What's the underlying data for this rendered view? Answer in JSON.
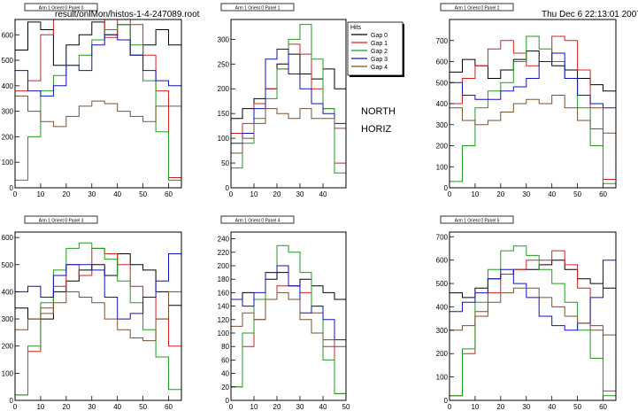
{
  "header": {
    "file_name": "result/onlMon/histos-1-4-247089.root",
    "timestamp": "Thu Dec  6 22:13:01 2007"
  },
  "side_labels": [
    "NORTH",
    "HORIZ"
  ],
  "legend": {
    "title": "Hits",
    "entries": [
      {
        "name": "Gap 0",
        "color": "#000000"
      },
      {
        "name": "Gap 1",
        "color": "#d42020"
      },
      {
        "name": "Gap 2",
        "color": "#1f9d1f"
      },
      {
        "name": "Gap 3",
        "color": "#1010c0"
      },
      {
        "name": "Gap 4",
        "color": "#7a5230"
      }
    ]
  },
  "chart_data": [
    {
      "type": "line",
      "title": "Arm 1 Orient 0 Panel 0",
      "xlim": [
        0,
        65
      ],
      "ylim": [
        0,
        660
      ],
      "xticks": [
        0,
        10,
        20,
        30,
        40,
        50,
        60
      ],
      "yticks": [
        0,
        100,
        200,
        300,
        400,
        500,
        600
      ],
      "series": [
        {
          "color": "#000000",
          "x": [
            0,
            5,
            10,
            15,
            20,
            25,
            30,
            35,
            40,
            45,
            50,
            55,
            60
          ],
          "y": [
            540,
            650,
            620,
            480,
            560,
            600,
            650,
            600,
            640,
            520,
            560,
            620,
            560
          ]
        },
        {
          "color": "#d42020",
          "x": [
            0,
            5,
            10,
            15,
            20,
            25,
            30,
            35,
            40,
            45,
            50,
            55,
            60
          ],
          "y": [
            380,
            420,
            600,
            690,
            720,
            680,
            720,
            590,
            720,
            640,
            520,
            380,
            40
          ]
        },
        {
          "color": "#1f9d1f",
          "x": [
            0,
            5,
            10,
            15,
            20,
            25,
            30,
            35,
            40,
            45,
            50,
            55,
            60
          ],
          "y": [
            30,
            200,
            380,
            440,
            480,
            520,
            580,
            620,
            640,
            560,
            420,
            220,
            30
          ]
        },
        {
          "color": "#1010c0",
          "x": [
            0,
            5,
            10,
            15,
            20,
            25,
            30,
            35,
            40,
            45,
            50,
            55,
            60
          ],
          "y": [
            460,
            380,
            360,
            400,
            480,
            460,
            560,
            600,
            580,
            520,
            460,
            420,
            400
          ]
        },
        {
          "color": "#7a5230",
          "x": [
            0,
            5,
            10,
            15,
            20,
            25,
            30,
            35,
            40,
            45,
            50,
            55,
            60
          ],
          "y": [
            360,
            300,
            260,
            240,
            280,
            320,
            340,
            330,
            300,
            280,
            260,
            320,
            320
          ]
        }
      ]
    },
    {
      "type": "line",
      "title": "Arm 1 Orient 0 Panel 1",
      "xlim": [
        0,
        50
      ],
      "ylim": [
        0,
        340
      ],
      "xticks": [
        0,
        10,
        20,
        30,
        40
      ],
      "yticks": [
        0,
        50,
        100,
        150,
        200,
        250,
        300
      ],
      "series": [
        {
          "color": "#000000",
          "x": [
            0,
            5,
            10,
            15,
            20,
            25,
            30,
            35,
            40,
            45
          ],
          "y": [
            140,
            160,
            180,
            200,
            250,
            270,
            230,
            220,
            240,
            200
          ]
        },
        {
          "color": "#d42020",
          "x": [
            0,
            5,
            10,
            15,
            20,
            25,
            30,
            35,
            40,
            45
          ],
          "y": [
            110,
            130,
            170,
            200,
            240,
            290,
            270,
            200,
            160,
            50
          ]
        },
        {
          "color": "#1f9d1f",
          "x": [
            0,
            5,
            10,
            15,
            20,
            25,
            30,
            35,
            40,
            45
          ],
          "y": [
            40,
            90,
            140,
            180,
            240,
            300,
            330,
            260,
            160,
            30
          ]
        },
        {
          "color": "#1010c0",
          "x": [
            0,
            5,
            10,
            15,
            20,
            25,
            30,
            35,
            40,
            45
          ],
          "y": [
            90,
            110,
            160,
            260,
            280,
            230,
            200,
            170,
            150,
            130
          ]
        },
        {
          "color": "#7a5230",
          "x": [
            0,
            5,
            10,
            15,
            20,
            25,
            30,
            35,
            40,
            45
          ],
          "y": [
            70,
            100,
            130,
            160,
            150,
            140,
            160,
            140,
            140,
            120
          ]
        }
      ]
    },
    {
      "type": "line",
      "title": "Arm 1 Orient 0 Panel 2",
      "xlim": [
        0,
        65
      ],
      "ylim": [
        0,
        800
      ],
      "xticks": [
        0,
        10,
        20,
        30,
        40,
        50,
        60
      ],
      "yticks": [
        0,
        100,
        200,
        300,
        400,
        500,
        600,
        700
      ],
      "series": [
        {
          "color": "#000000",
          "x": [
            0,
            5,
            10,
            15,
            20,
            25,
            30,
            35,
            40,
            45,
            50,
            55,
            60
          ],
          "y": [
            550,
            610,
            580,
            520,
            560,
            610,
            650,
            600,
            580,
            560,
            520,
            490,
            460
          ]
        },
        {
          "color": "#d42020",
          "x": [
            0,
            5,
            10,
            15,
            20,
            25,
            30,
            35,
            40,
            45,
            50,
            55,
            60
          ],
          "y": [
            400,
            520,
            580,
            660,
            700,
            640,
            580,
            600,
            720,
            700,
            560,
            380,
            40
          ]
        },
        {
          "color": "#1f9d1f",
          "x": [
            0,
            5,
            10,
            15,
            20,
            25,
            30,
            35,
            40,
            45,
            50,
            55,
            60
          ],
          "y": [
            30,
            200,
            380,
            460,
            500,
            600,
            720,
            660,
            600,
            520,
            380,
            200,
            20
          ]
        },
        {
          "color": "#1010c0",
          "x": [
            0,
            5,
            10,
            15,
            20,
            25,
            30,
            35,
            40,
            45,
            50,
            55,
            60
          ],
          "y": [
            500,
            440,
            420,
            420,
            460,
            480,
            520,
            600,
            640,
            520,
            440,
            400,
            380
          ]
        },
        {
          "color": "#7a5230",
          "x": [
            0,
            5,
            10,
            15,
            20,
            25,
            30,
            35,
            40,
            45,
            50,
            55,
            60
          ],
          "y": [
            380,
            320,
            300,
            320,
            360,
            400,
            420,
            400,
            440,
            380,
            320,
            280,
            260
          ]
        }
      ]
    },
    {
      "type": "line",
      "title": "Arm 1 Orient 0 Panel 3",
      "xlim": [
        0,
        65
      ],
      "ylim": [
        0,
        620
      ],
      "xticks": [
        0,
        10,
        20,
        30,
        40,
        50,
        60
      ],
      "yticks": [
        0,
        100,
        200,
        300,
        400,
        500,
        600
      ],
      "series": [
        {
          "color": "#000000",
          "x": [
            0,
            5,
            10,
            15,
            20,
            25,
            30,
            35,
            40,
            45,
            50,
            55,
            60
          ],
          "y": [
            340,
            300,
            300,
            400,
            440,
            480,
            500,
            460,
            540,
            500,
            480,
            400,
            350
          ]
        },
        {
          "color": "#d42020",
          "x": [
            0,
            5,
            10,
            15,
            20,
            25,
            30,
            35,
            40,
            45,
            50,
            55,
            60
          ],
          "y": [
            20,
            180,
            340,
            420,
            500,
            460,
            560,
            540,
            500,
            420,
            380,
            300,
            200
          ]
        },
        {
          "color": "#1f9d1f",
          "x": [
            0,
            5,
            10,
            15,
            20,
            25,
            30,
            35,
            40,
            45,
            50,
            55,
            60
          ],
          "y": [
            20,
            200,
            360,
            480,
            560,
            580,
            560,
            520,
            440,
            360,
            260,
            160,
            40
          ]
        },
        {
          "color": "#1010c0",
          "x": [
            0,
            5,
            10,
            15,
            20,
            25,
            30,
            35,
            40,
            45,
            50,
            55,
            60
          ],
          "y": [
            400,
            420,
            380,
            460,
            500,
            500,
            480,
            380,
            300,
            320,
            380,
            440,
            540
          ]
        },
        {
          "color": "#7a5230",
          "x": [
            0,
            5,
            10,
            15,
            20,
            25,
            30,
            35,
            40,
            45,
            50,
            55,
            60
          ],
          "y": [
            260,
            300,
            320,
            360,
            400,
            380,
            360,
            300,
            260,
            230,
            220,
            300,
            400
          ]
        }
      ]
    },
    {
      "type": "line",
      "title": "Arm 1 Orient 0 Panel 4",
      "xlim": [
        0,
        50
      ],
      "ylim": [
        0,
        250
      ],
      "xticks": [
        0,
        10,
        20,
        30,
        40,
        50
      ],
      "yticks": [
        0,
        20,
        40,
        60,
        80,
        100,
        120,
        140,
        160,
        180,
        200,
        220,
        240
      ],
      "series": [
        {
          "color": "#000000",
          "x": [
            0,
            5,
            10,
            15,
            20,
            25,
            30,
            35,
            40,
            45
          ],
          "y": [
            150,
            160,
            150,
            180,
            190,
            170,
            180,
            170,
            160,
            150
          ]
        },
        {
          "color": "#d42020",
          "x": [
            0,
            5,
            10,
            15,
            20,
            25,
            30,
            35,
            40,
            45
          ],
          "y": [
            20,
            80,
            120,
            150,
            170,
            170,
            160,
            130,
            80,
            10
          ]
        },
        {
          "color": "#1f9d1f",
          "x": [
            0,
            5,
            10,
            15,
            20,
            25,
            30,
            35,
            40,
            45
          ],
          "y": [
            20,
            100,
            150,
            190,
            230,
            220,
            190,
            140,
            60,
            10
          ]
        },
        {
          "color": "#1010c0",
          "x": [
            0,
            5,
            10,
            15,
            20,
            25,
            30,
            35,
            40,
            45
          ],
          "y": [
            150,
            140,
            160,
            190,
            200,
            170,
            130,
            140,
            120,
            90
          ]
        },
        {
          "color": "#7a5230",
          "x": [
            0,
            5,
            10,
            15,
            20,
            25,
            30,
            35,
            40,
            45
          ],
          "y": [
            110,
            130,
            120,
            150,
            160,
            150,
            120,
            100,
            90,
            80
          ]
        }
      ]
    },
    {
      "type": "line",
      "title": "Arm 1 Orient 0 Panel 5",
      "xlim": [
        0,
        65
      ],
      "ylim": [
        0,
        720
      ],
      "xticks": [
        0,
        10,
        20,
        30,
        40,
        50,
        60
      ],
      "yticks": [
        0,
        100,
        200,
        300,
        400,
        500,
        600,
        700
      ],
      "series": [
        {
          "color": "#000000",
          "x": [
            0,
            5,
            10,
            15,
            20,
            25,
            30,
            35,
            40,
            45,
            50,
            55,
            60
          ],
          "y": [
            460,
            440,
            480,
            520,
            540,
            560,
            560,
            580,
            600,
            560,
            520,
            500,
            480
          ]
        },
        {
          "color": "#d42020",
          "x": [
            0,
            5,
            10,
            15,
            20,
            25,
            30,
            35,
            40,
            45,
            50,
            55,
            60
          ],
          "y": [
            20,
            200,
            380,
            460,
            540,
            560,
            600,
            600,
            640,
            580,
            480,
            320,
            40
          ]
        },
        {
          "color": "#1f9d1f",
          "x": [
            0,
            5,
            10,
            15,
            20,
            25,
            30,
            35,
            40,
            45,
            50,
            55,
            60
          ],
          "y": [
            20,
            220,
            420,
            560,
            640,
            660,
            620,
            560,
            500,
            420,
            300,
            180,
            20
          ]
        },
        {
          "color": "#1010c0",
          "x": [
            0,
            5,
            10,
            15,
            20,
            25,
            30,
            35,
            40,
            45,
            50,
            55,
            60
          ],
          "y": [
            380,
            420,
            460,
            520,
            560,
            500,
            440,
            360,
            320,
            300,
            330,
            440,
            600
          ]
        },
        {
          "color": "#7a5230",
          "x": [
            0,
            5,
            10,
            15,
            20,
            25,
            30,
            35,
            40,
            45,
            50,
            55,
            60
          ],
          "y": [
            300,
            320,
            360,
            420,
            460,
            480,
            480,
            440,
            400,
            360,
            330,
            300,
            280
          ]
        }
      ]
    }
  ]
}
